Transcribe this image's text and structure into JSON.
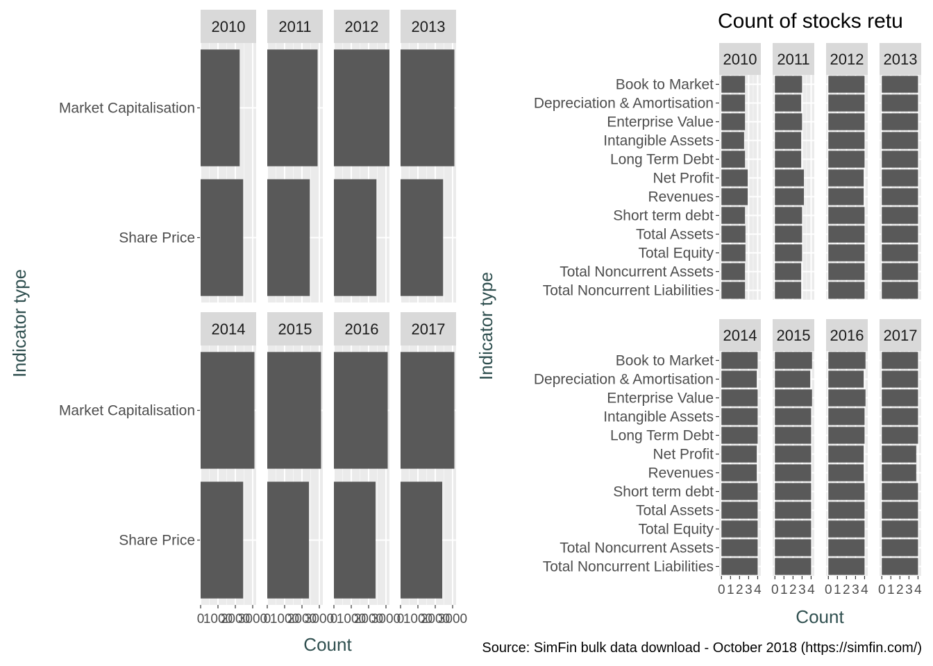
{
  "chart_data": [
    {
      "type": "bar",
      "orientation": "horizontal",
      "facets": [
        "2010",
        "2011",
        "2012",
        "2013",
        "2014",
        "2015",
        "2016",
        "2017"
      ],
      "categories": [
        "Share Price",
        "Market Capitalisation"
      ],
      "xlabel": "Count",
      "ylabel": "Indicator type",
      "xlim": [
        0,
        3200
      ],
      "x_ticks": [
        0,
        1000,
        2000,
        3000
      ],
      "x_tick_labels": [
        "0",
        "1000",
        "2000",
        "3000"
      ],
      "values": {
        "2010": [
          2450,
          2250
        ],
        "2011": [
          2450,
          2900
        ],
        "2012": [
          2450,
          3200
        ],
        "2013": [
          2450,
          3100
        ],
        "2014": [
          2450,
          3100
        ],
        "2015": [
          2400,
          3100
        ],
        "2016": [
          2400,
          3100
        ],
        "2017": [
          2400,
          3100
        ]
      },
      "grid": true
    },
    {
      "type": "bar",
      "orientation": "horizontal",
      "title": "Count of stocks retu",
      "facets": [
        "2010",
        "2011",
        "2012",
        "2013",
        "2014",
        "2015",
        "2016",
        "2017"
      ],
      "categories": [
        "Total Noncurrent Liabilities",
        "Total Noncurrent Assets",
        "Total Equity",
        "Total Assets",
        "Short term debt",
        "Revenues",
        "Net Profit",
        "Long Term Debt",
        "Intangible Assets",
        "Enterprise Value",
        "Depreciation & Amortisation",
        "Book to Market"
      ],
      "xlabel": "Count",
      "ylabel": "Indicator type",
      "xlim": [
        -0.25,
        4.35
      ],
      "x_ticks": [
        0,
        1,
        2,
        3,
        4
      ],
      "x_tick_labels": [
        "0",
        "1",
        "2",
        "3",
        "4"
      ],
      "values": {
        "2010": [
          2.6,
          2.6,
          2.65,
          2.65,
          2.6,
          2.9,
          2.9,
          2.6,
          2.5,
          2.6,
          2.6,
          2.6
        ],
        "2011": [
          2.9,
          2.9,
          3.0,
          3.0,
          3.0,
          3.2,
          3.2,
          2.9,
          2.9,
          3.0,
          2.9,
          3.0
        ],
        "2012": [
          4.0,
          4.0,
          4.0,
          4.0,
          4.0,
          3.9,
          3.9,
          4.0,
          4.0,
          4.0,
          4.0,
          4.0
        ],
        "2013": [
          4.0,
          4.0,
          4.0,
          4.0,
          4.0,
          4.0,
          4.0,
          4.0,
          4.0,
          4.0,
          4.0,
          4.0
        ],
        "2014": [
          4.0,
          4.0,
          4.0,
          4.0,
          4.0,
          3.9,
          3.9,
          4.0,
          4.0,
          4.0,
          3.9,
          4.0
        ],
        "2015": [
          4.0,
          4.0,
          4.0,
          4.0,
          4.0,
          4.0,
          4.0,
          4.0,
          4.0,
          4.1,
          3.9,
          4.1
        ],
        "2016": [
          4.0,
          4.0,
          4.0,
          4.0,
          4.0,
          3.9,
          3.9,
          4.0,
          4.0,
          4.1,
          3.9,
          4.1
        ],
        "2017": [
          4.0,
          4.0,
          4.0,
          4.0,
          4.0,
          3.8,
          3.8,
          4.0,
          4.0,
          4.0,
          4.0,
          4.0
        ]
      },
      "grid": true
    }
  ],
  "caption": "Source: SimFin bulk data download - October 2018 (https://simfin.com/)",
  "colors": {
    "bar": "#595959",
    "panel": "#ebebeb",
    "grid_major": "#ffffff",
    "grid_minor": "#f5f5f5",
    "strip": "#d9d9d9"
  }
}
